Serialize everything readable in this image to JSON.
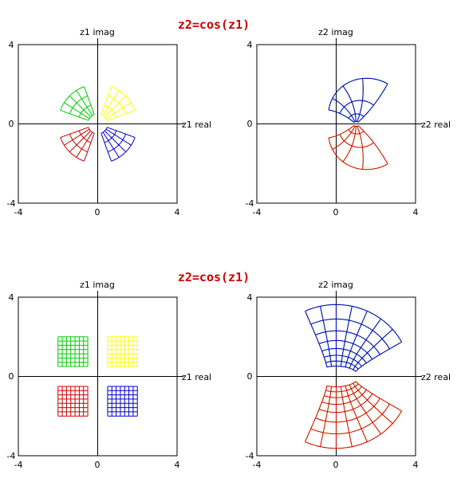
{
  "titles": [
    "z2=cos(z1)",
    "z2=cos(z1)"
  ],
  "panels": [
    {
      "id": "top-left",
      "vertical_axis_label": "z1 imag",
      "horizontal_axis_label": "z1 real",
      "tick_labels": {
        "min": "-4",
        "zero": "0",
        "max": "4"
      },
      "shape": "polar-sectors"
    },
    {
      "id": "top-right",
      "vertical_axis_label": "z2 imag",
      "horizontal_axis_label": "z2 real",
      "tick_labels": {
        "min": "-4",
        "zero": "0",
        "max": "4"
      },
      "shape": "mapped-polar-sectors"
    },
    {
      "id": "bottom-left",
      "vertical_axis_label": "z1 imag",
      "horizontal_axis_label": "z1 real",
      "tick_labels": {
        "min": "-4",
        "zero": "0",
        "max": "4"
      },
      "shape": "square-grids"
    },
    {
      "id": "bottom-right",
      "vertical_axis_label": "z2 imag",
      "horizontal_axis_label": "z2 real",
      "tick_labels": {
        "min": "-4",
        "zero": "0",
        "max": "4"
      },
      "shape": "mapped-square-grids"
    }
  ],
  "chart_data": {
    "type": "diagram",
    "function": "z2=cos(z1)",
    "xlim": [
      -4,
      4
    ],
    "ylim": [
      -4,
      4
    ],
    "sectors": [
      {
        "quadrant": 1,
        "color": "#ffff00",
        "r_range": [
          0.5,
          2.0
        ],
        "theta_deg_range": [
          20,
          70
        ]
      },
      {
        "quadrant": 2,
        "color": "#00cc00",
        "r_range": [
          0.5,
          2.0
        ],
        "theta_deg_range": [
          110,
          160
        ]
      },
      {
        "quadrant": 3,
        "color": "#cc0000",
        "r_range": [
          0.5,
          2.0
        ],
        "theta_deg_range": [
          200,
          250
        ]
      },
      {
        "quadrant": 4,
        "color": "#0000cc",
        "r_range": [
          0.5,
          2.0
        ],
        "theta_deg_range": [
          290,
          340
        ]
      }
    ],
    "squares": [
      {
        "quadrant": 1,
        "color": "#ffff00",
        "x_range": [
          0.5,
          2.0
        ],
        "y_range": [
          0.5,
          2.0
        ]
      },
      {
        "quadrant": 2,
        "color": "#00cc00",
        "x_range": [
          -2.0,
          -0.5
        ],
        "y_range": [
          0.5,
          2.0
        ]
      },
      {
        "quadrant": 3,
        "color": "#cc0000",
        "x_range": [
          -2.0,
          -0.5
        ],
        "y_range": [
          -2.0,
          -0.5
        ]
      },
      {
        "quadrant": 4,
        "color": "#0000cc",
        "x_range": [
          0.5,
          2.0
        ],
        "y_range": [
          -2.0,
          -0.5
        ]
      }
    ],
    "sector_grid": {
      "radial_divisions": 3,
      "angular_divisions": 4
    },
    "square_grid": {
      "divisions": 7
    }
  }
}
